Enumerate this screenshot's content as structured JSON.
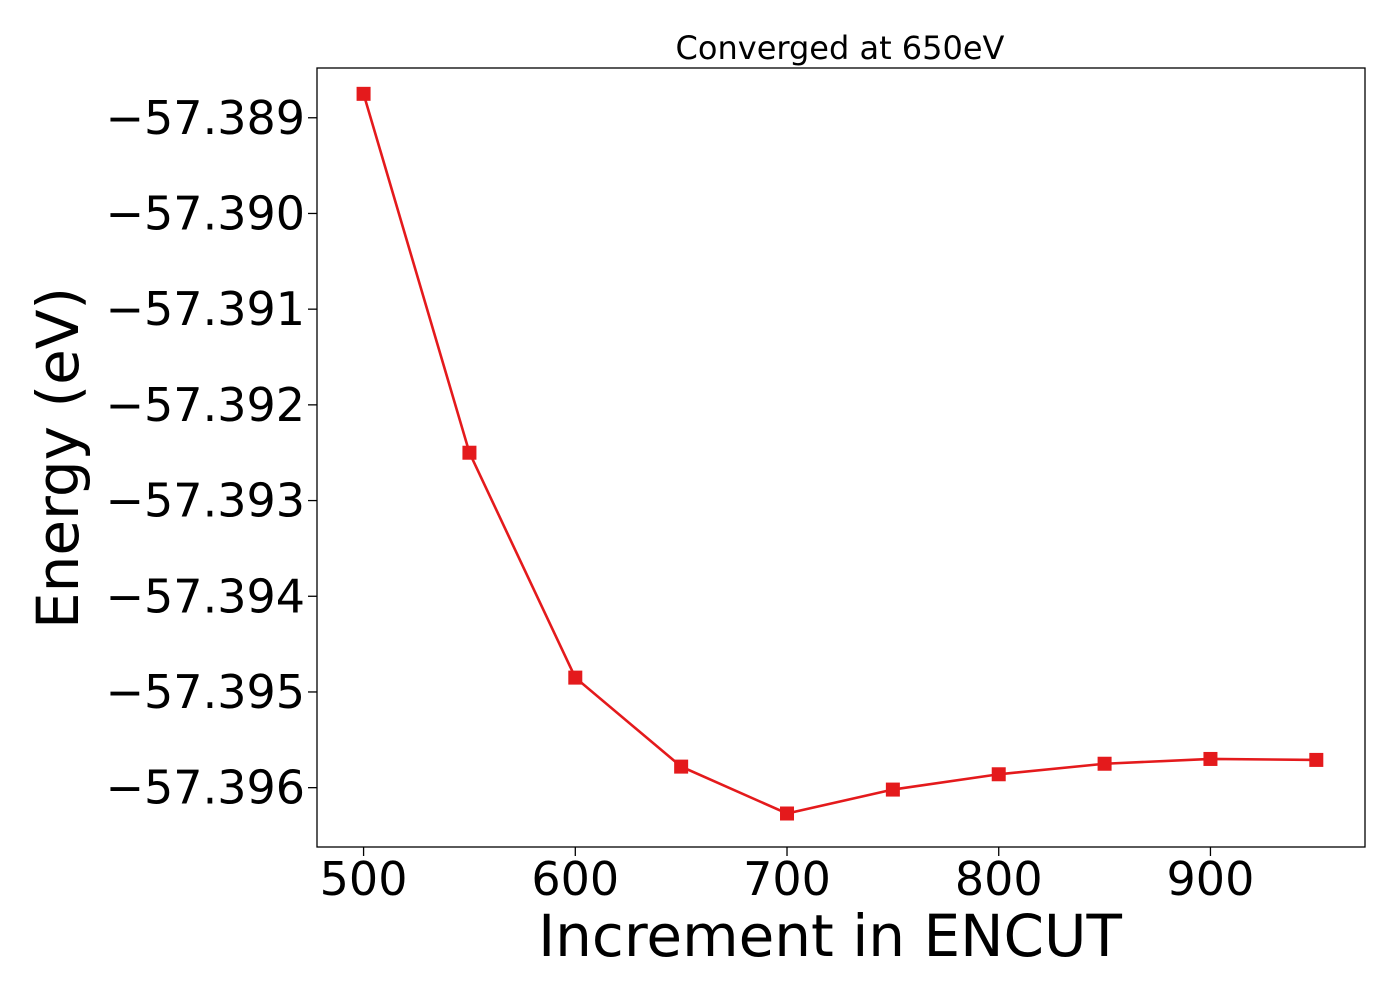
{
  "chart_data": {
    "type": "line",
    "title": "Converged at 650eV",
    "xlabel": "Increment in ENCUT",
    "ylabel": "Energy (eV)",
    "xlim": [
      478,
      973
    ],
    "ylim": [
      -57.39662,
      -57.38848
    ],
    "x_ticks": [
      500,
      600,
      700,
      800,
      900
    ],
    "y_ticks": [
      -57.389,
      -57.39,
      -57.391,
      -57.392,
      -57.393,
      -57.394,
      -57.395,
      -57.396
    ],
    "x_tick_labels": [
      "500",
      "600",
      "700",
      "800",
      "900"
    ],
    "y_tick_labels": [
      "−57.389",
      "−57.390",
      "−57.391",
      "−57.392",
      "−57.393",
      "−57.394",
      "−57.395",
      "−57.396"
    ],
    "grid": false,
    "series": [
      {
        "color": "#e41a1c",
        "marker": "square",
        "x": [
          500,
          550,
          600,
          650,
          700,
          750,
          800,
          850,
          900,
          950
        ],
        "y": [
          -57.38875,
          -57.3925,
          -57.39485,
          -57.39578,
          -57.39627,
          -57.39602,
          -57.39586,
          -57.39575,
          -57.3957,
          -57.39571
        ]
      }
    ]
  }
}
